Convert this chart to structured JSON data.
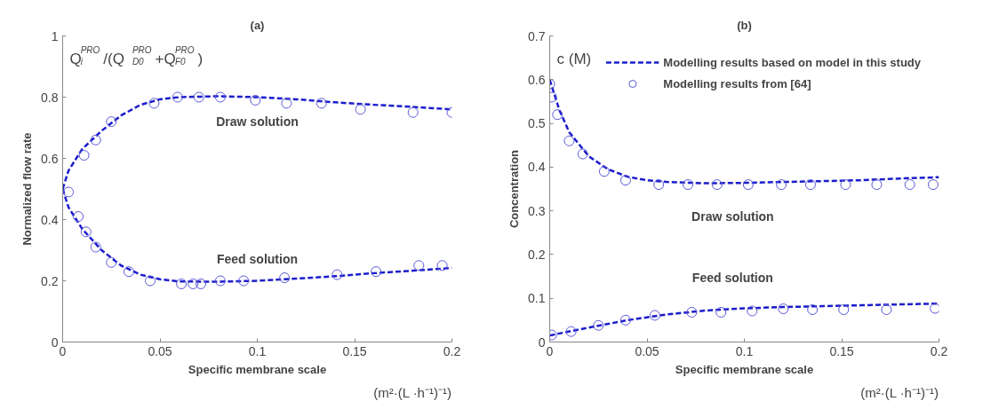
{
  "chart_data": [
    {
      "type": "line",
      "title": "(a)",
      "xlabel": "Specific membrane scale",
      "ylabel": "Normalized flow rate",
      "xlim": [
        0,
        0.2
      ],
      "ylim": [
        0,
        1
      ],
      "xticks": [
        0,
        0.05,
        0.1,
        0.15,
        0.2
      ],
      "yticks": [
        0,
        0.2,
        0.4,
        0.6,
        0.8,
        1
      ],
      "grid": false,
      "legend": false,
      "line_style": "dashed",
      "annotations": [
        "Q$^{PRO}$$_{i}$/(Q$^{PRO}$$_{D0}$+Q$^{PRO}$$_{F0}$)",
        "(m²·(L ·h⁻¹)⁻¹)",
        "Draw solution",
        "Feed solution"
      ],
      "series": [
        {
          "color": "#1c1ccc",
          "x": [
            0,
            0.003,
            0.01,
            0.02,
            0.03,
            0.04,
            0.05,
            0.06,
            0.08,
            0.1,
            0.12,
            0.14,
            0.16,
            0.18,
            0.2
          ],
          "values": [
            0.5,
            0.56,
            0.63,
            0.69,
            0.74,
            0.775,
            0.793,
            0.8,
            0.803,
            0.8,
            0.793,
            0.783,
            0.775,
            0.768,
            0.76
          ]
        },
        {
          "color": "#1c1ccc",
          "x": [
            0,
            0.003,
            0.01,
            0.02,
            0.03,
            0.04,
            0.05,
            0.06,
            0.08,
            0.1,
            0.12,
            0.14,
            0.16,
            0.18,
            0.2
          ],
          "values": [
            0.5,
            0.44,
            0.37,
            0.3,
            0.25,
            0.22,
            0.205,
            0.198,
            0.197,
            0.2,
            0.207,
            0.215,
            0.225,
            0.233,
            0.242
          ]
        },
        {
          "type": "scatter",
          "marker": "circle",
          "color": "#5a5ad6",
          "x": [
            0.003,
            0.011,
            0.017,
            0.025,
            0.047,
            0.059,
            0.07,
            0.081,
            0.099,
            0.115,
            0.133,
            0.153,
            0.18,
            0.2
          ],
          "values": [
            0.49,
            0.61,
            0.66,
            0.72,
            0.78,
            0.8,
            0.8,
            0.8,
            0.79,
            0.78,
            0.78,
            0.76,
            0.75,
            0.75
          ]
        },
        {
          "type": "scatter",
          "marker": "circle",
          "color": "#5a5ad6",
          "x": [
            0.008,
            0.012,
            0.017,
            0.025,
            0.034,
            0.045,
            0.061,
            0.067,
            0.071,
            0.081,
            0.093,
            0.114,
            0.141,
            0.161,
            0.183,
            0.195
          ],
          "values": [
            0.41,
            0.36,
            0.31,
            0.26,
            0.23,
            0.2,
            0.19,
            0.19,
            0.19,
            0.2,
            0.2,
            0.21,
            0.22,
            0.23,
            0.25,
            0.25
          ]
        }
      ]
    },
    {
      "type": "line",
      "title": "(b)",
      "xlabel": "Specific membrane scale",
      "ylabel": "Concentration",
      "xlim": [
        0,
        0.2
      ],
      "ylim": [
        0,
        0.7
      ],
      "xticks": [
        0,
        0.05,
        0.1,
        0.15,
        0.2
      ],
      "yticks": [
        0,
        0.1,
        0.2,
        0.3,
        0.4,
        0.5,
        0.6,
        0.7
      ],
      "grid": false,
      "legend": "top right",
      "line_style": "dashed",
      "annotations": [
        "c (M)",
        "(m²·(L ·h⁻¹)⁻¹)",
        "Draw solution",
        "Feed solution"
      ],
      "series": [
        {
          "name": "Modelling results based on model in this study",
          "color": "#1c1ccc",
          "x": [
            0,
            0.005,
            0.01,
            0.02,
            0.03,
            0.04,
            0.05,
            0.06,
            0.08,
            0.1,
            0.12,
            0.14,
            0.16,
            0.18,
            0.2
          ],
          "values": [
            0.6,
            0.53,
            0.48,
            0.425,
            0.395,
            0.378,
            0.37,
            0.366,
            0.363,
            0.364,
            0.366,
            0.368,
            0.37,
            0.374,
            0.377
          ]
        },
        {
          "color": "#1c1ccc",
          "x": [
            0,
            0.02,
            0.04,
            0.06,
            0.08,
            0.1,
            0.12,
            0.14,
            0.16,
            0.18,
            0.2
          ],
          "values": [
            0.015,
            0.033,
            0.05,
            0.063,
            0.072,
            0.077,
            0.08,
            0.082,
            0.084,
            0.086,
            0.088
          ]
        },
        {
          "type": "scatter",
          "marker": "circle",
          "name": "Modelling results from [64]",
          "color": "#5a5ad6",
          "x": [
            0,
            0.001,
            0.004,
            0.01,
            0.017,
            0.028,
            0.039,
            0.056,
            0.071,
            0.086,
            0.102,
            0.119,
            0.134,
            0.152,
            0.168,
            0.185,
            0.197
          ],
          "values": [
            0.59,
            0.56,
            0.52,
            0.46,
            0.43,
            0.39,
            0.37,
            0.36,
            0.36,
            0.36,
            0.36,
            0.36,
            0.36,
            0.36,
            0.36,
            0.36,
            0.36
          ]
        },
        {
          "type": "scatter",
          "marker": "circle",
          "color": "#5a5ad6",
          "x": [
            0.001,
            0.011,
            0.025,
            0.039,
            0.054,
            0.073,
            0.088,
            0.104,
            0.12,
            0.135,
            0.151,
            0.173,
            0.198
          ],
          "values": [
            0.016,
            0.024,
            0.038,
            0.05,
            0.061,
            0.068,
            0.068,
            0.071,
            0.076,
            0.074,
            0.074,
            0.074,
            0.077
          ]
        }
      ]
    }
  ]
}
